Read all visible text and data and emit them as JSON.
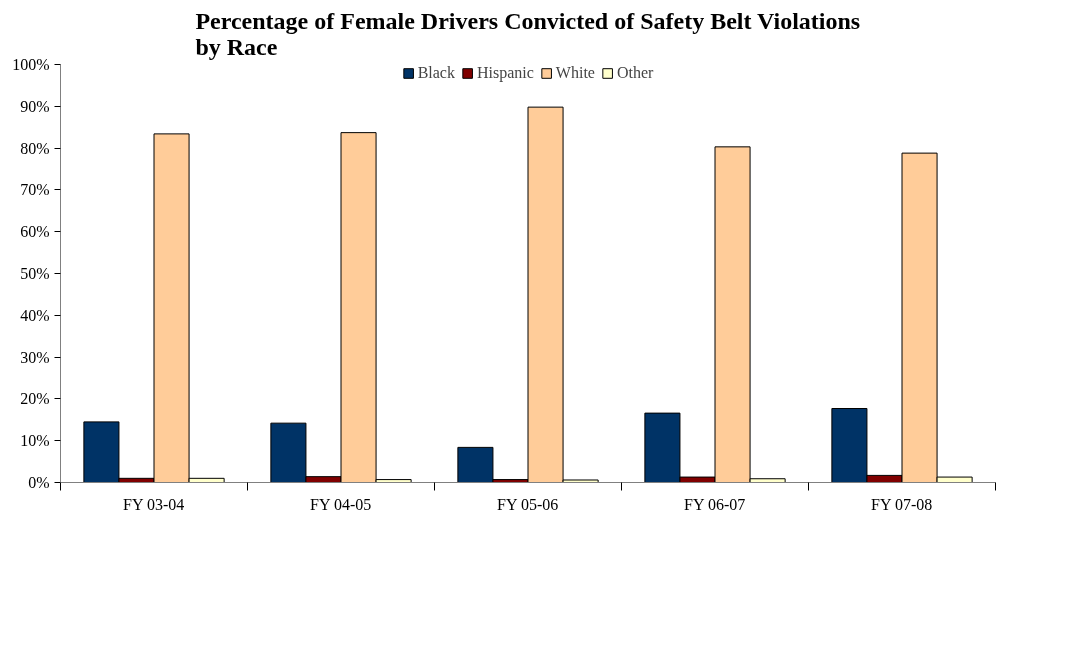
{
  "chart_data": {
    "type": "bar",
    "title": "Percentage of Female Drivers Convicted of Safety Belt Violations by Race",
    "categories": [
      "FY 03-04",
      "FY 04-05",
      "FY 05-06",
      "FY 06-07",
      "FY 07-08"
    ],
    "series": [
      {
        "name": "Black",
        "color": "#003366",
        "values": [
          14.5,
          14.2,
          8.4,
          16.6,
          17.7
        ]
      },
      {
        "name": "Hispanic",
        "color": "#800000",
        "values": [
          1.0,
          1.4,
          0.7,
          1.3,
          1.7
        ]
      },
      {
        "name": "White",
        "color": "#ffcc99",
        "values": [
          83.4,
          83.7,
          89.8,
          80.3,
          78.8
        ]
      },
      {
        "name": "Other",
        "color": "#ffffcc",
        "values": [
          1.0,
          0.7,
          0.6,
          0.9,
          1.3
        ]
      }
    ],
    "ylim": [
      0,
      100
    ],
    "yticks": [
      {
        "value": 0,
        "label": "0%"
      },
      {
        "value": 10,
        "label": "10%"
      },
      {
        "value": 20,
        "label": "20%"
      },
      {
        "value": 30,
        "label": "30%"
      },
      {
        "value": 40,
        "label": "40%"
      },
      {
        "value": 50,
        "label": "50%"
      },
      {
        "value": 60,
        "label": "60%"
      },
      {
        "value": 70,
        "label": "70%"
      },
      {
        "value": 80,
        "label": "80%"
      },
      {
        "value": 90,
        "label": "90%"
      },
      {
        "value": 100,
        "label": "100%"
      }
    ],
    "grid": false,
    "legend": "top"
  }
}
